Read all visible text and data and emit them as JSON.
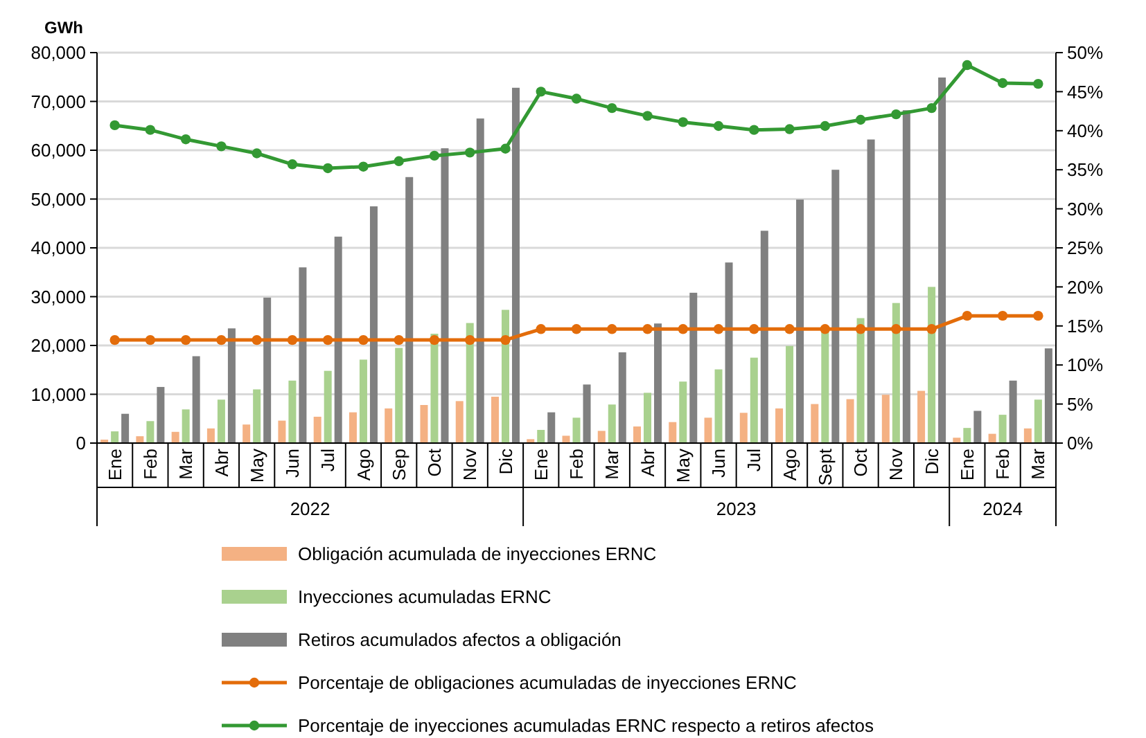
{
  "chart_data": {
    "type": "bar",
    "ylabel": "GWh",
    "categories": [
      "Ene",
      "Feb",
      "Mar",
      "Abr",
      "May",
      "Jun",
      "Jul",
      "Ago",
      "Sep",
      "Oct",
      "Nov",
      "Dic",
      "Ene",
      "Feb",
      "Mar",
      "Abr",
      "May",
      "Jun",
      "Jul",
      "Ago",
      "Sept",
      "Oct",
      "Nov",
      "Dic",
      "Ene",
      "Feb",
      "Mar"
    ],
    "annotations": [
      "2022",
      "2023",
      "2024"
    ],
    "series": [
      {
        "name": "Obligación acumulada de inyecciones ERNC",
        "color": "#f4b183",
        "values": [
          700,
          1400,
          2300,
          3000,
          3800,
          4600,
          5400,
          6300,
          7100,
          7800,
          8600,
          9500,
          800,
          1500,
          2500,
          3400,
          4300,
          5200,
          6200,
          7100,
          8000,
          9000,
          9900,
          10700,
          1100,
          1900,
          3000
        ]
      },
      {
        "name": "Inyecciones acumuladas ERNC",
        "color": "#a9d18e",
        "values": [
          2400,
          4500,
          6900,
          8900,
          11000,
          12800,
          14800,
          17100,
          19500,
          22400,
          24600,
          27300,
          2700,
          5200,
          7900,
          10300,
          12600,
          15100,
          17500,
          19900,
          22900,
          25600,
          28700,
          32000,
          3100,
          5800,
          8900
        ]
      },
      {
        "name": "Retiros acumulados afectos a obligación",
        "color": "#808080",
        "values": [
          6000,
          11500,
          17800,
          23500,
          29800,
          36000,
          42300,
          48500,
          54500,
          60400,
          66500,
          72800,
          6300,
          12000,
          18600,
          24500,
          30800,
          37000,
          43500,
          49900,
          56000,
          62200,
          68200,
          74900,
          6600,
          12800,
          19400
        ]
      },
      {
        "name": "Porcentaje de obligaciones acumuladas de inyecciones ERNC",
        "type": "line",
        "axis": "y2",
        "color": "#e36c0a",
        "values": [
          13.2,
          13.2,
          13.2,
          13.2,
          13.2,
          13.2,
          13.2,
          13.2,
          13.2,
          13.2,
          13.2,
          13.2,
          14.6,
          14.6,
          14.6,
          14.6,
          14.6,
          14.6,
          14.6,
          14.6,
          14.6,
          14.6,
          14.6,
          14.6,
          16.3,
          16.3,
          16.3
        ]
      },
      {
        "name": "Porcentaje de inyecciones acumuladas ERNC respecto a retiros afectos",
        "type": "line",
        "axis": "y2",
        "color": "#339933",
        "values": [
          40.7,
          40.1,
          38.9,
          38.0,
          37.1,
          35.7,
          35.2,
          35.4,
          36.1,
          36.8,
          37.2,
          37.7,
          45.0,
          44.1,
          42.9,
          41.9,
          41.1,
          40.6,
          40.1,
          40.2,
          40.6,
          41.4,
          42.1,
          42.9,
          48.4,
          46.1,
          46.0
        ]
      }
    ],
    "ylim": [
      0,
      80000
    ],
    "yticks": [
      {
        "value": 0,
        "label": "0"
      },
      {
        "value": 10000,
        "label": "10,000"
      },
      {
        "value": 20000,
        "label": "20,000"
      },
      {
        "value": 30000,
        "label": "30,000"
      },
      {
        "value": 40000,
        "label": "40,000"
      },
      {
        "value": 50000,
        "label": "50,000"
      },
      {
        "value": 60000,
        "label": "60,000"
      },
      {
        "value": 70000,
        "label": "70,000"
      },
      {
        "value": 80000,
        "label": "80,000"
      }
    ],
    "y2lim": [
      0,
      50
    ],
    "y2ticks": [
      {
        "value": 0,
        "label": "0%"
      },
      {
        "value": 5,
        "label": "5%"
      },
      {
        "value": 10,
        "label": "10%"
      },
      {
        "value": 15,
        "label": "15%"
      },
      {
        "value": 20,
        "label": "20%"
      },
      {
        "value": 25,
        "label": "25%"
      },
      {
        "value": 30,
        "label": "30%"
      },
      {
        "value": 35,
        "label": "35%"
      },
      {
        "value": 40,
        "label": "40%"
      },
      {
        "value": 45,
        "label": "45%"
      },
      {
        "value": 50,
        "label": "50%"
      }
    ],
    "grid": "y",
    "legend": "bottom",
    "marker": "circle",
    "line_style": "solid"
  }
}
